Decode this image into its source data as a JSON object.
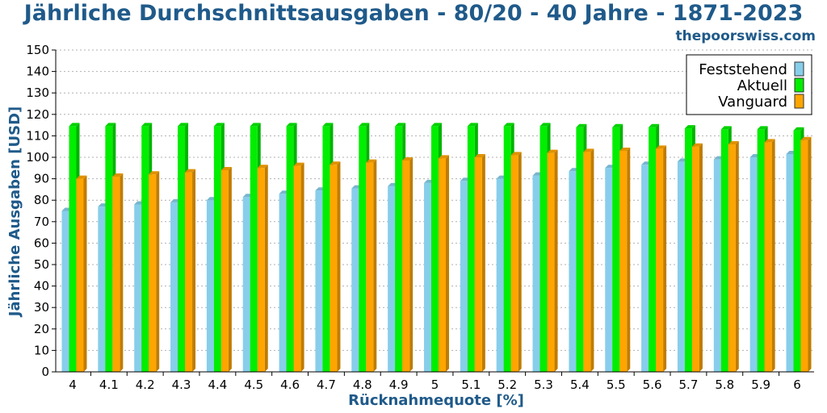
{
  "brand": "thepoorswiss.com",
  "chart_data": {
    "type": "bar",
    "title": "Jährliche Durchschnittsausgaben - 80/20 - 40 Jahre - 1871-2023",
    "xlabel": "Rücknahmequote [%]",
    "ylabel": "Jährliche Ausgaben [USD]",
    "ylim": [
      0,
      150
    ],
    "yticks": [
      0,
      10,
      20,
      30,
      40,
      50,
      60,
      70,
      80,
      90,
      100,
      110,
      120,
      130,
      140,
      150
    ],
    "grid": true,
    "legend_position": "top-right",
    "categories": [
      "4",
      "4.1",
      "4.2",
      "4.3",
      "4.4",
      "4.5",
      "4.6",
      "4.7",
      "4.8",
      "4.9",
      "5",
      "5.1",
      "5.2",
      "5.3",
      "5.4",
      "5.5",
      "5.6",
      "5.7",
      "5.8",
      "5.9",
      "6"
    ],
    "series": [
      {
        "name": "Feststehend",
        "color": "#87ceeb",
        "values": [
          75,
          77,
          78,
          79,
          80,
          81.5,
          83,
          84.5,
          85.5,
          86.5,
          88,
          89,
          90,
          91.5,
          93.5,
          95,
          96.5,
          98,
          99,
          100,
          101.5
        ]
      },
      {
        "name": "Aktuell",
        "color": "#00ee00",
        "values": [
          114.5,
          114.5,
          114.5,
          114.5,
          114.5,
          114.5,
          114.5,
          114.5,
          114.5,
          114.5,
          114.5,
          114.5,
          114.5,
          114.5,
          114,
          114,
          114,
          113.5,
          113,
          113,
          112.5
        ]
      },
      {
        "name": "Vanguard",
        "color": "#ffa500",
        "values": [
          90,
          91,
          92,
          93,
          94,
          95,
          96,
          96.5,
          97.5,
          98.5,
          99.5,
          100,
          101,
          102,
          102.5,
          103,
          104,
          105,
          106,
          107,
          108
        ]
      }
    ]
  }
}
